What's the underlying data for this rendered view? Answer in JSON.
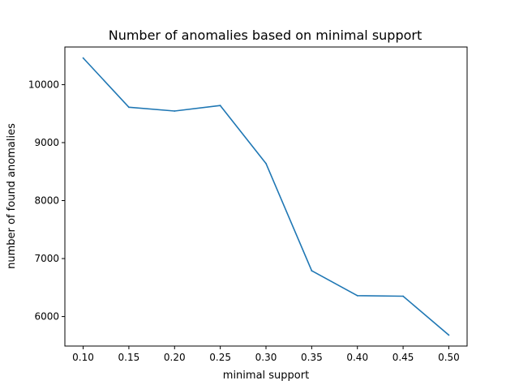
{
  "chart_data": {
    "type": "line",
    "title": "Number of anomalies based on minimal support",
    "xlabel": "minimal support",
    "ylabel": "number of found anomalies",
    "x": [
      0.1,
      0.15,
      0.2,
      0.25,
      0.3,
      0.35,
      0.4,
      0.45,
      0.5
    ],
    "series": [
      {
        "values": [
          10460,
          9610,
          9545,
          9640,
          8640,
          6790,
          6360,
          6350,
          5680
        ],
        "color": "#1f77b4"
      }
    ],
    "xlim": [
      0.08,
      0.52
    ],
    "ylim": [
      5491,
      10649
    ],
    "x_ticks": [
      "0.10",
      "0.15",
      "0.20",
      "0.25",
      "0.30",
      "0.35",
      "0.40",
      "0.45",
      "0.50"
    ],
    "y_ticks": [
      "6000",
      "7000",
      "8000",
      "9000",
      "10000"
    ],
    "grid": false,
    "legend": "none"
  }
}
